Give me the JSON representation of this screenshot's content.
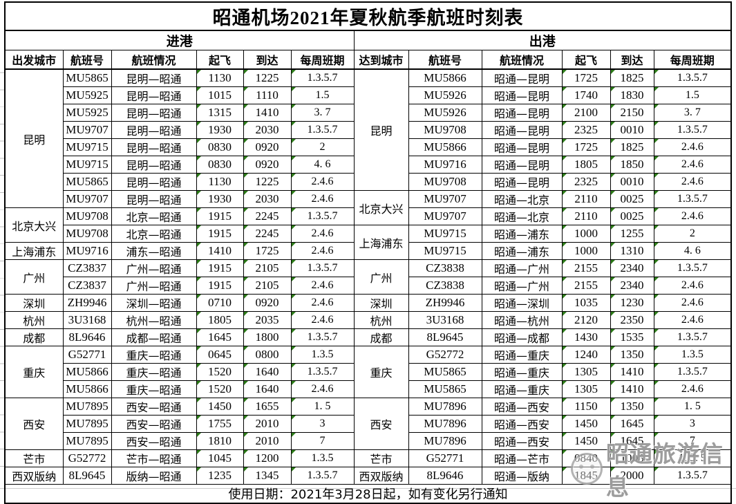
{
  "title": "昭通机场2021年夏秋航季航班时刻表",
  "footer_note": "使用日期：2021年3月28日起，如有变化另行通知",
  "watermark": {
    "label": "昭通旅游信息",
    "logo": "mascot-logo"
  },
  "colors": {
    "grid": "#000000",
    "text": "#000000",
    "flag_green": "#2e7d1a",
    "watermark_gray": "#878787",
    "background": "#ffffff"
  },
  "arrivals": {
    "section_label": "进港",
    "headers": {
      "city": "出发城市",
      "flight": "航班号",
      "info": "航班情况",
      "dep": "起飞",
      "arr": "到达",
      "days": "每周班期"
    }
  },
  "departures": {
    "section_label": "出港",
    "headers": {
      "city": "达到城市",
      "flight": "航班号",
      "info": "航班情况",
      "dep": "起飞",
      "arr": "到达",
      "days": "每周班期"
    }
  },
  "rows": [
    {
      "left": {
        "city": {
          "label": "昆明",
          "span": 8
        },
        "flight": "MU5865",
        "route": "昆明—昭通",
        "dep": "1130",
        "arr": "1225",
        "days": "1.3.5.7"
      },
      "right": {
        "city": {
          "label": "昆明",
          "span": 7
        },
        "flight": "MU5866",
        "route": "昭通—昆明",
        "dep": "1725",
        "arr": "1825",
        "days": "1.3.5.7"
      }
    },
    {
      "left": {
        "flight": "MU5925",
        "route": "昆明—昭通",
        "dep": "1015",
        "arr": "1110",
        "days": "1.5"
      },
      "right": {
        "flight": "MU5926",
        "route": "昭通—昆明",
        "dep": "1740",
        "arr": "1830",
        "days": "1.5"
      }
    },
    {
      "left": {
        "flight": "MU5925",
        "route": "昆明—昭通",
        "dep": "1315",
        "arr": "1410",
        "days": "3. 7"
      },
      "right": {
        "flight": "MU5926",
        "route": "昭通—昆明",
        "dep": "2100",
        "arr": "2150",
        "days": "3. 7"
      }
    },
    {
      "left": {
        "flight": "MU9707",
        "route": "昆明—昭通",
        "dep": "1930",
        "arr": "2030",
        "days": "1.3.5.7"
      },
      "right": {
        "flight": "MU9708",
        "route": "昭通—昆明",
        "dep": "2325",
        "arr": "0010",
        "days": "1.3.5.7"
      }
    },
    {
      "left": {
        "flight": "MU9715",
        "route": "昆明—昭通",
        "dep": "0830",
        "arr": "0920",
        "days": "2"
      },
      "right": {
        "flight": "MU5866",
        "route": "昭通—昆明",
        "dep": "1725",
        "arr": "1825",
        "days": "2.4.6"
      }
    },
    {
      "left": {
        "flight": "MU9715",
        "route": "昆明—昭通",
        "dep": "0830",
        "arr": "0920",
        "days": "4. 6"
      },
      "right": {
        "flight": "MU9716",
        "route": "昭通—昆明",
        "dep": "1805",
        "arr": "1850",
        "days": "2.4.6"
      }
    },
    {
      "left": {
        "flight": "MU5865",
        "route": "昆明—昭通",
        "dep": "1130",
        "arr": "1225",
        "days": "2.4.6"
      },
      "right": {
        "flight": "MU9708",
        "route": "昭通—昆明",
        "dep": "2325",
        "arr": "0010",
        "days": "2.4.6"
      }
    },
    {
      "left": {
        "flight": "MU9707",
        "route": "昆明—昭通",
        "dep": "1930",
        "arr": "2030",
        "days": "2.4.6"
      },
      "right": {
        "city": {
          "label": "北京大兴",
          "span": 2
        },
        "flight": "MU9707",
        "route": "昭通—北京",
        "dep": "2110",
        "arr": "0025",
        "days": "1.3.5.7"
      }
    },
    {
      "left": {
        "city": {
          "label": "北京大兴",
          "span": 2
        },
        "flight": "MU9708",
        "route": "北京—昭通",
        "dep": "1915",
        "arr": "2245",
        "days": "1.3.5.7"
      },
      "right": {
        "flight": "MU9707",
        "route": "昭通—北京",
        "dep": "2110",
        "arr": "0025",
        "days": "2.4.6"
      }
    },
    {
      "left": {
        "flight": "MU9708",
        "route": "北京—昭通",
        "dep": "1915",
        "arr": "2245",
        "days": "2.4.6"
      },
      "right": {
        "city": {
          "label": "上海浦东",
          "span": 2
        },
        "flight": "MU9715",
        "route": "昭通—浦东",
        "dep": "1000",
        "arr": "1255",
        "days": "2"
      }
    },
    {
      "left": {
        "city": {
          "label": "上海浦东",
          "span": 1
        },
        "flight": "MU9716",
        "route": "浦东—昭通",
        "dep": "1410",
        "arr": "1725",
        "days": "2.4.6"
      },
      "right": {
        "flight": "MU9715",
        "route": "昭通—浦东",
        "dep": "1000",
        "arr": "1310",
        "days": "4. 6"
      }
    },
    {
      "left": {
        "city": {
          "label": "广州",
          "span": 2
        },
        "flight": "CZ3837",
        "route": "广州—昭通",
        "dep": "1915",
        "arr": "2105",
        "days": "1.3.5.7"
      },
      "right": {
        "city": {
          "label": "广州",
          "span": 2
        },
        "flight": "CZ3838",
        "route": "昭通—广州",
        "dep": "2155",
        "arr": "2340",
        "days": "1.3.5.7"
      }
    },
    {
      "left": {
        "flight": "CZ3837",
        "route": "广州—昭通",
        "dep": "1915",
        "arr": "2105",
        "days": "2.4.6"
      },
      "right": {
        "flight": "CZ3838",
        "route": "昭通—广州",
        "dep": "2155",
        "arr": "2340",
        "days": "2.4.6"
      }
    },
    {
      "left": {
        "city": {
          "label": "深圳",
          "span": 1
        },
        "flight": "ZH9946",
        "route": "深圳—昭通",
        "dep": "0710",
        "arr": "0920",
        "days": "2.4.6"
      },
      "right": {
        "city": {
          "label": "深圳",
          "span": 1
        },
        "flight": "ZH9946",
        "route": "昭通—深圳",
        "dep": "1035",
        "arr": "1230",
        "days": "2.4.6"
      }
    },
    {
      "left": {
        "city": {
          "label": "杭州",
          "span": 1
        },
        "flight": "3U3168",
        "route": "杭州—昭通",
        "dep": "1805",
        "arr": "2035",
        "days": "2.4.6"
      },
      "right": {
        "city": {
          "label": "杭州",
          "span": 1
        },
        "flight": "3U3168",
        "route": "昭通—杭州",
        "dep": "2120",
        "arr": "2350",
        "days": "2.4.6"
      }
    },
    {
      "left": {
        "city": {
          "label": "成都",
          "span": 1
        },
        "flight": "8L9646",
        "route": "成都—昭通",
        "dep": "1645",
        "arr": "1800",
        "days": "1.3.5.7"
      },
      "right": {
        "city": {
          "label": "成都",
          "span": 1
        },
        "flight": "8L9645",
        "route": "昭通—成都",
        "dep": "1430",
        "arr": "1535",
        "days": "1.3.5.7"
      }
    },
    {
      "left": {
        "city": {
          "label": "重庆",
          "span": 3
        },
        "flight": "G52771",
        "route": "重庆—昭通",
        "dep": "0645",
        "arr": "0800",
        "days": "1.3.5"
      },
      "right": {
        "city": {
          "label": "重庆",
          "span": 3
        },
        "flight": "G52772",
        "route": "昭通—重庆",
        "dep": "1240",
        "arr": "1350",
        "days": "1.3.5"
      }
    },
    {
      "left": {
        "flight": "MU5866",
        "route": "重庆—昭通",
        "dep": "1520",
        "arr": "1640",
        "days": "1.3.5.7"
      },
      "right": {
        "flight": "MU5865",
        "route": "昭通—重庆",
        "dep": "1305",
        "arr": "1410",
        "days": "1.3.5.7"
      }
    },
    {
      "left": {
        "flight": "MU5866",
        "route": "重庆—昭通",
        "dep": "1520",
        "arr": "1640",
        "days": "2.4.6"
      },
      "right": {
        "flight": "MU5865",
        "route": "昭通—重庆",
        "dep": "1305",
        "arr": "1410",
        "days": "2.4.6"
      }
    },
    {
      "left": {
        "city": {
          "label": "西安",
          "span": 3
        },
        "flight": "MU7895",
        "route": "西安—昭通",
        "dep": "1450",
        "arr": "1655",
        "days": "1. 5"
      },
      "right": {
        "city": {
          "label": "西安",
          "span": 3
        },
        "flight": "MU7896",
        "route": "昭通—西安",
        "dep": "1150",
        "arr": "1350",
        "days": "1. 5"
      }
    },
    {
      "left": {
        "flight": "MU7895",
        "route": "西安—昭通",
        "dep": "1755",
        "arr": "2010",
        "days": "3"
      },
      "right": {
        "flight": "MU7896",
        "route": "昭通—西安",
        "dep": "1450",
        "arr": "1645",
        "days": "3"
      }
    },
    {
      "left": {
        "flight": "MU7895",
        "route": "西安—昭通",
        "dep": "1810",
        "arr": "2010",
        "days": "7"
      },
      "right": {
        "flight": "MU7896",
        "route": "昭通—西安",
        "dep": "1450",
        "arr": "1645",
        "days": "7"
      }
    },
    {
      "left": {
        "city": {
          "label": "芒市",
          "span": 1
        },
        "flight": "G52772",
        "route": "芒市—昭通",
        "dep": "1045",
        "arr": "1200",
        "days": "1.3.5"
      },
      "right": {
        "city": {
          "label": "芒市",
          "span": 1
        },
        "flight": "G52771",
        "route": "昭通—芒市",
        "dep": "0840",
        "arr": "1005",
        "days": "1. 3. 5"
      }
    },
    {
      "left": {
        "city": {
          "label": "西双版纳",
          "span": 1
        },
        "flight": "8L9645",
        "route": "版纳—昭通",
        "dep": "1235",
        "arr": "1345",
        "days": "1.3.5.7"
      },
      "right": {
        "city": {
          "label": "西双版纳",
          "span": 1
        },
        "flight": "8L9646",
        "route": "昭通—版纳",
        "dep": "1845",
        "arr": "2000",
        "days": "1.3.5.7"
      }
    }
  ]
}
